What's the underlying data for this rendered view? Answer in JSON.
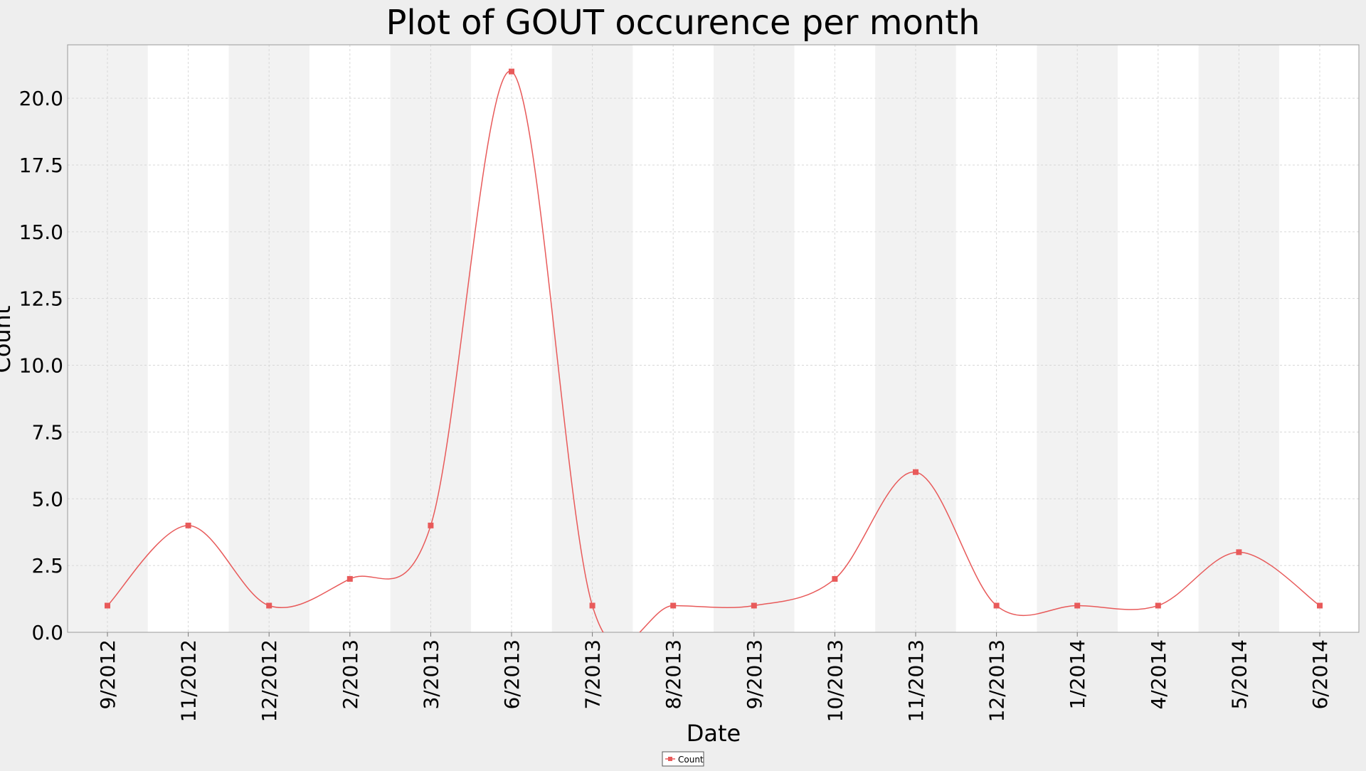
{
  "chart_data": {
    "type": "line",
    "title": "Plot of GOUT occurence per month",
    "xlabel": "Date",
    "ylabel": "Count",
    "ylim": [
      0,
      22
    ],
    "yticks": [
      0.0,
      2.5,
      5.0,
      7.5,
      10.0,
      12.5,
      15.0,
      17.5,
      20.0
    ],
    "ytick_labels": [
      "0.0",
      "2.5",
      "5.0",
      "7.5",
      "10.0",
      "12.5",
      "15.0",
      "17.5",
      "20.0"
    ],
    "categories": [
      "9/2012",
      "11/2012",
      "12/2012",
      "2/2013",
      "3/2013",
      "6/2013",
      "7/2013",
      "8/2013",
      "9/2013",
      "10/2013",
      "11/2013",
      "12/2013",
      "1/2014",
      "4/2014",
      "5/2014",
      "6/2014"
    ],
    "grid": true,
    "legend_position": "bottom-center",
    "series": [
      {
        "name": "Count",
        "color": "#e85a5a",
        "values": [
          1,
          4,
          1,
          2,
          4,
          21,
          1,
          1,
          1,
          2,
          6,
          1,
          1,
          1,
          3,
          1
        ]
      }
    ]
  }
}
